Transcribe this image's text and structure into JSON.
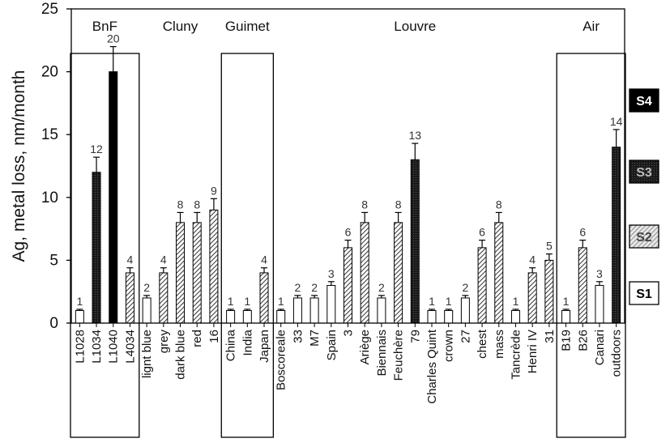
{
  "chart_data": {
    "type": "bar",
    "ylabel": "Ag, metal loss, nm/month",
    "xlabel": "",
    "ylim": [
      0,
      25
    ],
    "yticks": [
      0,
      5,
      10,
      15,
      20,
      25
    ],
    "grid": false,
    "groups": [
      {
        "name": "BnF",
        "boxed": true,
        "categories": [
          "L1028",
          "L1034",
          "L1040",
          "L4034"
        ]
      },
      {
        "name": "Cluny",
        "boxed": false,
        "categories": [
          "lignt blue",
          "grey",
          "dark blue",
          "red",
          "16"
        ]
      },
      {
        "name": "Guimet",
        "boxed": true,
        "categories": [
          "China",
          "India",
          "Japan"
        ]
      },
      {
        "name": "Louvre",
        "boxed": false,
        "categories": [
          "Boscoreale",
          "33",
          "M7",
          "Spain",
          "3",
          "Ariège",
          "Biennais",
          "Feuchère",
          "79",
          "Charles Quint",
          "crown",
          "27",
          "chest",
          "mass",
          "Tancrède",
          "Henri IV",
          "31"
        ]
      },
      {
        "name": "Air",
        "boxed": true,
        "categories": [
          "B19",
          "B26",
          "Canari",
          "outdoors"
        ]
      }
    ],
    "categories": [
      "L1028",
      "L1034",
      "L1040",
      "L4034",
      "lignt blue",
      "grey",
      "dark blue",
      "red",
      "16",
      "China",
      "India",
      "Japan",
      "Boscoreale",
      "33",
      "M7",
      "Spain",
      "3",
      "Ariège",
      "Biennais",
      "Feuchère",
      "79",
      "Charles Quint",
      "crown",
      "27",
      "chest",
      "mass",
      "Tancrède",
      "Henri IV",
      "31",
      "B19",
      "B26",
      "Canari",
      "outdoors"
    ],
    "values": [
      1,
      12,
      20,
      4,
      2,
      4,
      8,
      8,
      9,
      1,
      1,
      4,
      1,
      2,
      2,
      3,
      6,
      8,
      2,
      8,
      13,
      1,
      1,
      2,
      6,
      8,
      1,
      4,
      5,
      1,
      6,
      3,
      14
    ],
    "labels": [
      "1",
      "12",
      "20",
      "4",
      "2",
      "4",
      "8",
      "8",
      "9",
      "1",
      "1",
      "4",
      "1",
      "2",
      "2",
      "3",
      "6",
      "8",
      "2",
      "8",
      "13",
      "1",
      "1",
      "2",
      "6",
      "8",
      "1",
      "4",
      "5",
      "1",
      "6",
      "3",
      "14"
    ],
    "classes": [
      "S1",
      "S3",
      "S4",
      "S2",
      "S1",
      "S2",
      "S2",
      "S2",
      "S2",
      "S1",
      "S1",
      "S2",
      "S1",
      "S1",
      "S1",
      "S1",
      "S2",
      "S2",
      "S1",
      "S2",
      "S3",
      "S1",
      "S1",
      "S1",
      "S2",
      "S2",
      "S1",
      "S2",
      "S2",
      "S1",
      "S2",
      "S1",
      "S3"
    ],
    "errors": [
      0.1,
      1.2,
      2.0,
      0.4,
      0.2,
      0.4,
      0.8,
      0.8,
      0.9,
      0.1,
      0.1,
      0.4,
      0.1,
      0.2,
      0.2,
      0.3,
      0.6,
      0.8,
      0.2,
      0.8,
      1.3,
      0.1,
      0.1,
      0.2,
      0.6,
      0.8,
      0.1,
      0.4,
      0.5,
      0.1,
      0.6,
      0.3,
      1.4
    ],
    "class_legend": [
      {
        "label": "S4",
        "style": "black"
      },
      {
        "label": "S3",
        "style": "dark-gray"
      },
      {
        "label": "S2",
        "style": "hatched"
      },
      {
        "label": "S1",
        "style": "white"
      }
    ]
  },
  "colors": {
    "S1": "#ffffff",
    "S2": "#cfcfcf",
    "S3": "#1a1a1a",
    "S4": "#000000",
    "axis": "#000000",
    "text": "#111111"
  }
}
